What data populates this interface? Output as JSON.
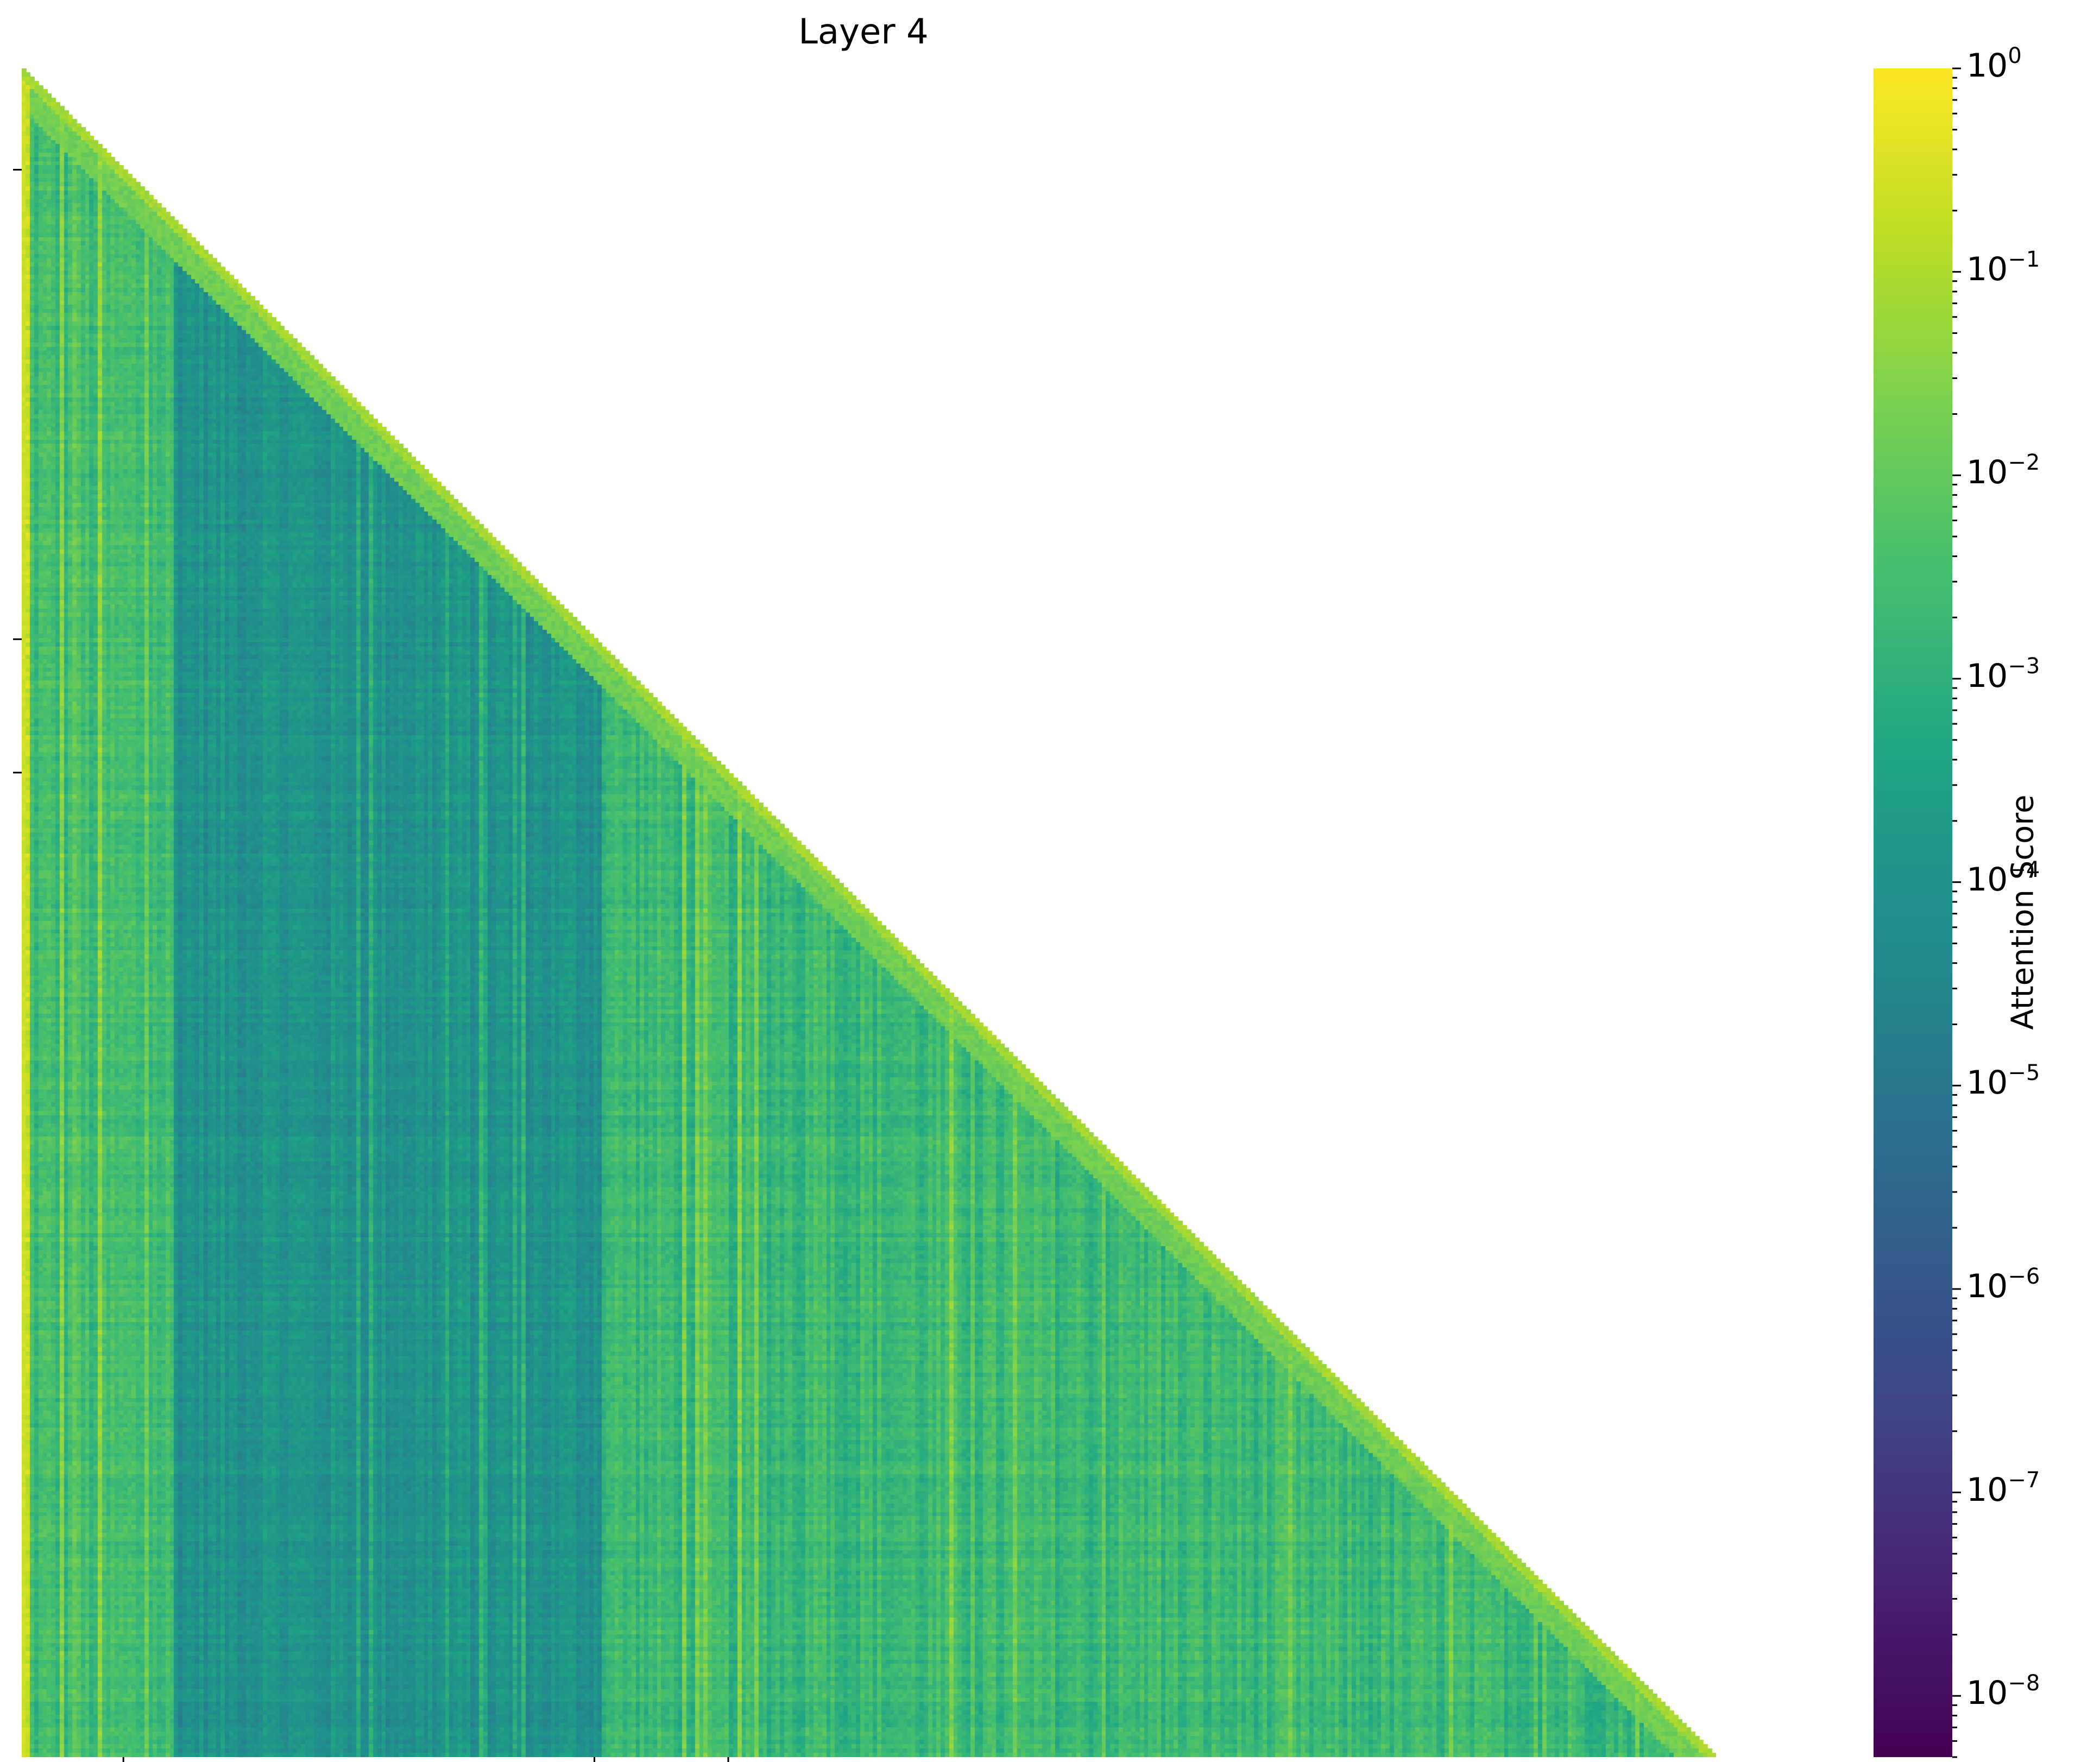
{
  "chart_data": {
    "type": "heatmap",
    "title": "Layer 4",
    "xlabel": "",
    "ylabel": "",
    "mask": "lower-triangular (causal attention)",
    "colormap": "viridis",
    "scale": "log",
    "colorbar": {
      "label": "Attention Score",
      "range": [
        5e-09,
        1
      ],
      "ticks": [
        {
          "exp": "0",
          "value": 1
        },
        {
          "exp": "−1",
          "value": 0.1
        },
        {
          "exp": "−2",
          "value": 0.01
        },
        {
          "exp": "−3",
          "value": 0.001
        },
        {
          "exp": "−4",
          "value": 0.0001
        },
        {
          "exp": "−5",
          "value": 1e-05
        },
        {
          "exp": "−6",
          "value": 1e-06
        },
        {
          "exp": "−7",
          "value": 1e-07
        },
        {
          "exp": "−8",
          "value": 1e-08
        }
      ],
      "tick_base": "10"
    },
    "x_ticks_fraction": [
      0.06,
      0.338,
      0.417
    ],
    "y_ticks_fraction": [
      0.06,
      0.338,
      0.417
    ],
    "regions": [
      {
        "name": "first column (attention sink)",
        "x_range": [
          0,
          0.003
        ],
        "log10_score": -0.8
      },
      {
        "name": "early tokens",
        "x_range": [
          0.003,
          0.09
        ],
        "log10_score": -2.6
      },
      {
        "name": "low-attention block",
        "x_range": [
          0.09,
          0.342
        ],
        "log10_score": -4.0
      },
      {
        "name": "later tokens",
        "x_range": [
          0.342,
          1.0
        ],
        "log10_score": -2.7
      },
      {
        "name": "diagonal band",
        "log10_score": -1.2
      }
    ]
  }
}
